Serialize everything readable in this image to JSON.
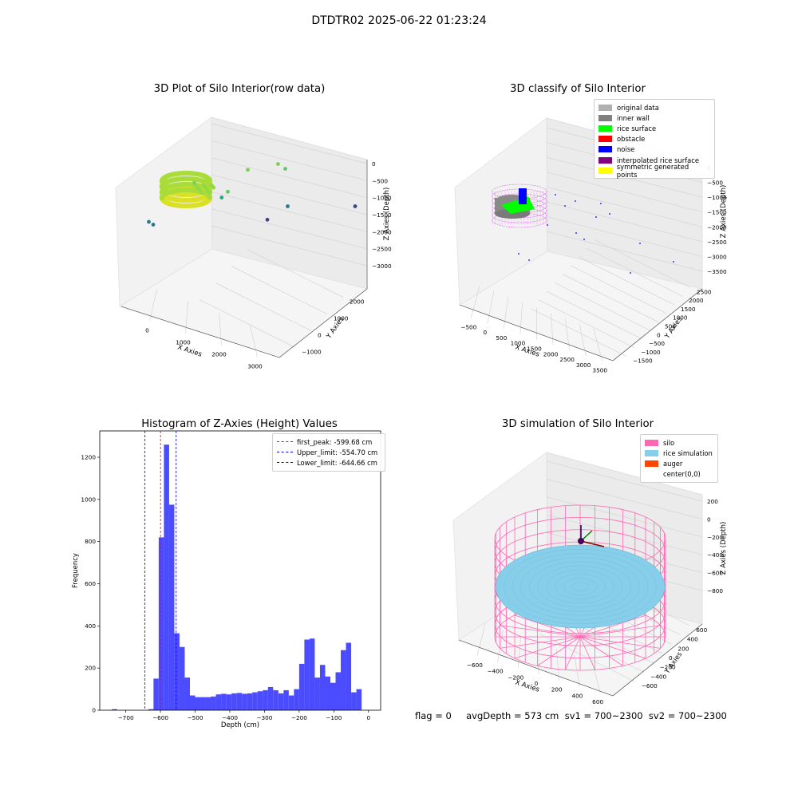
{
  "suptitle": "DTDTR02 2025-06-22 01:23:24",
  "footer": "flag = 0     avgDepth = 573 cm  sv1 = 700~2300  sv2 = 700~2300",
  "chart_data": [
    {
      "type": "scatter",
      "title": "3D Plot of Silo Interior(row data)",
      "xlabel": "X Axies",
      "ylabel": "Y Axies",
      "zlabel": "Z Axies (Depth)",
      "x_ticks": [
        "0",
        "1000",
        "2000",
        "3000"
      ],
      "y_ticks": [
        "−1000",
        "0",
        "1000",
        "2000"
      ],
      "z_ticks": [
        "0",
        "−500",
        "−1000",
        "−1500",
        "−2000",
        "−2500",
        "−3000"
      ],
      "points": [
        {
          "x": 1380,
          "y": 1750,
          "z": -1300
        },
        {
          "x": 1100,
          "y": 1300,
          "z": -1250
        },
        {
          "x": 1500,
          "y": 1800,
          "z": -1500
        },
        {
          "x": 700,
          "y": 400,
          "z": -1200
        },
        {
          "x": 1100,
          "y": 800,
          "z": -1750
        },
        {
          "x": 1050,
          "y": 700,
          "z": -1900
        },
        {
          "x": 300,
          "y": -300,
          "z": -2200
        },
        {
          "x": 400,
          "y": -300,
          "z": -2300
        },
        {
          "x": 2100,
          "y": 1200,
          "z": -2500
        },
        {
          "x": 3000,
          "y": 1900,
          "z": -2900
        },
        {
          "x": 2000,
          "y": 800,
          "z": -2750
        }
      ]
    },
    {
      "type": "scatter",
      "title": "3D classify of Silo Interior",
      "xlabel": "X Axies",
      "ylabel": "Y Axies",
      "zlabel": "Z Axies (Depth)",
      "x_ticks": [
        "−500",
        "0",
        "500",
        "1000",
        "1500",
        "2000",
        "2500",
        "3000",
        "3500"
      ],
      "y_ticks": [
        "−1500",
        "−1000",
        "−500",
        "0",
        "500",
        "1000",
        "1500",
        "2000",
        "2500"
      ],
      "z_ticks": [
        "0",
        "−500",
        "−1000",
        "−1500",
        "−2000",
        "−2500",
        "−3000",
        "−3500"
      ],
      "legend": [
        {
          "label": "original data",
          "color": "#b0b0b0"
        },
        {
          "label": "inner wall",
          "color": "#808080"
        },
        {
          "label": "rice surface",
          "color": "#00ff00"
        },
        {
          "label": "obstacle",
          "color": "#ff0000"
        },
        {
          "label": "noise",
          "color": "#0000ff"
        },
        {
          "label": "interpolated rice surface",
          "color": "#800080"
        },
        {
          "label": "symmetric generated points",
          "color": "#ffff00"
        }
      ]
    },
    {
      "type": "bar",
      "title": "Histogram of Z-Axies (Height) Values",
      "xlabel": "Depth (cm)",
      "ylabel": "Frequency",
      "xlim": [
        -775,
        35
      ],
      "ylim": [
        0,
        1325
      ],
      "x_ticks": [
        -700,
        -600,
        -500,
        -400,
        -300,
        -200,
        -100,
        0
      ],
      "y_ticks": [
        0,
        200,
        400,
        600,
        800,
        1000,
        1200
      ],
      "bin_width": 15,
      "bin_starts": [
        -740,
        -725,
        -710,
        -695,
        -680,
        -665,
        -650,
        -635,
        -620,
        -605,
        -590,
        -575,
        -560,
        -545,
        -530,
        -515,
        -500,
        -485,
        -470,
        -455,
        -440,
        -425,
        -410,
        -395,
        -380,
        -365,
        -350,
        -335,
        -320,
        -305,
        -290,
        -275,
        -260,
        -245,
        -230,
        -215,
        -200,
        -185,
        -170,
        -155,
        -140,
        -125,
        -110,
        -95,
        -80,
        -65,
        -50,
        -35,
        -20,
        -5
      ],
      "counts": [
        5,
        0,
        0,
        0,
        0,
        0,
        0,
        5,
        150,
        820,
        1260,
        975,
        365,
        300,
        155,
        70,
        62,
        62,
        62,
        65,
        75,
        78,
        75,
        80,
        82,
        78,
        80,
        85,
        90,
        95,
        110,
        95,
        80,
        95,
        70,
        100,
        220,
        335,
        340,
        155,
        215,
        160,
        130,
        180,
        285,
        320,
        85,
        100,
        0,
        0
      ],
      "vlines": [
        {
          "label": "first_peak: -599.68 cm",
          "value": -599.68,
          "color": "#ff0000"
        },
        {
          "label": "Upper_limit: -554.70 cm",
          "value": -554.7,
          "color": "#0000ff"
        },
        {
          "label": "Lower_limit: -644.66 cm",
          "value": -644.66,
          "color": "#0000ff"
        }
      ],
      "bar_color": "#4b4bff"
    },
    {
      "type": "scatter",
      "title": "3D simulation of Silo Interior",
      "xlabel": "X Axies",
      "ylabel": "Y Axies",
      "zlabel": "Z Axies (Depth)",
      "x_ticks": [
        "−600",
        "−400",
        "−200",
        "0",
        "200",
        "400",
        "600"
      ],
      "y_ticks": [
        "−600",
        "−400",
        "−200",
        "0",
        "200",
        "400",
        "600"
      ],
      "z_ticks": [
        "200",
        "0",
        "−200",
        "−400",
        "−600",
        "−800"
      ],
      "legend": [
        {
          "label": "silo",
          "color": "#ff69b4"
        },
        {
          "label": "rice simulation",
          "color": "#87ceeb"
        },
        {
          "label": "auger",
          "color": "#ff4500"
        },
        {
          "label": "center(0,0)",
          "color": ""
        }
      ]
    }
  ]
}
